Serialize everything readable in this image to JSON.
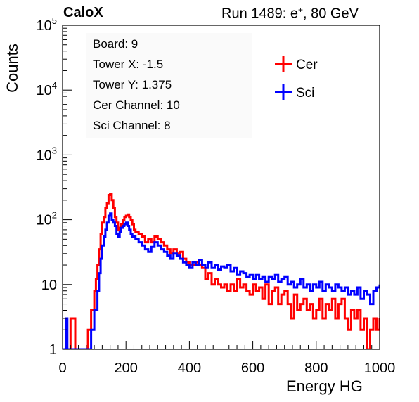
{
  "header": {
    "experiment": "CaloX",
    "run_text": "Run 1489: e",
    "run_sup": "+",
    "run_energy": ", 80 GeV"
  },
  "info_box": {
    "lines": [
      "Board: 9",
      "Tower X: -1.5",
      "Tower Y: 1.375",
      "Cer Channel: 10",
      "Sci Channel: 8"
    ]
  },
  "colors": {
    "cer": "#ff0000",
    "sci": "#0000ff",
    "axis": "#000000"
  },
  "chart_data": {
    "type": "line",
    "style": "step-histogram",
    "xlabel": "Energy HG",
    "ylabel": "Counts",
    "xlim": [
      0,
      1000
    ],
    "ylim": [
      1,
      100000
    ],
    "yscale": "log",
    "x_ticks": [
      0,
      200,
      400,
      600,
      800,
      1000
    ],
    "y_ticks": [
      {
        "value": 1,
        "label": "1"
      },
      {
        "value": 10,
        "label": "10"
      },
      {
        "value": 100,
        "label": "10",
        "sup": "2"
      },
      {
        "value": 1000,
        "label": "10",
        "sup": "3"
      },
      {
        "value": 10000,
        "label": "10",
        "sup": "4"
      },
      {
        "value": 100000,
        "label": "10",
        "sup": "5"
      }
    ],
    "legend": {
      "placement": "top-right"
    },
    "series": [
      {
        "name": "Cer",
        "points": [
          [
            0,
            1
          ],
          [
            20,
            1
          ],
          [
            25,
            3
          ],
          [
            40,
            1
          ],
          [
            50,
            1
          ],
          [
            60,
            1
          ],
          [
            70,
            1
          ],
          [
            80,
            2
          ],
          [
            90,
            4
          ],
          [
            100,
            8
          ],
          [
            105,
            12
          ],
          [
            110,
            20
          ],
          [
            115,
            35
          ],
          [
            120,
            60
          ],
          [
            125,
            90
          ],
          [
            130,
            110
          ],
          [
            135,
            150
          ],
          [
            140,
            180
          ],
          [
            145,
            240
          ],
          [
            150,
            250
          ],
          [
            155,
            200
          ],
          [
            160,
            150
          ],
          [
            165,
            110
          ],
          [
            170,
            90
          ],
          [
            175,
            70
          ],
          [
            180,
            75
          ],
          [
            185,
            85
          ],
          [
            190,
            100
          ],
          [
            195,
            110
          ],
          [
            200,
            115
          ],
          [
            205,
            120
          ],
          [
            210,
            110
          ],
          [
            215,
            100
          ],
          [
            220,
            85
          ],
          [
            225,
            70
          ],
          [
            230,
            65
          ],
          [
            240,
            60
          ],
          [
            250,
            55
          ],
          [
            260,
            45
          ],
          [
            270,
            50
          ],
          [
            280,
            45
          ],
          [
            290,
            55
          ],
          [
            300,
            50
          ],
          [
            310,
            45
          ],
          [
            320,
            40
          ],
          [
            330,
            35
          ],
          [
            340,
            30
          ],
          [
            350,
            35
          ],
          [
            360,
            30
          ],
          [
            370,
            32
          ],
          [
            380,
            25
          ],
          [
            390,
            22
          ],
          [
            400,
            20
          ],
          [
            410,
            20
          ],
          [
            420,
            22
          ],
          [
            430,
            20
          ],
          [
            440,
            18
          ],
          [
            450,
            12
          ],
          [
            460,
            15
          ],
          [
            470,
            10
          ],
          [
            480,
            12
          ],
          [
            490,
            10
          ],
          [
            500,
            9
          ],
          [
            510,
            10
          ],
          [
            520,
            8
          ],
          [
            530,
            10
          ],
          [
            540,
            8
          ],
          [
            550,
            12
          ],
          [
            560,
            9
          ],
          [
            570,
            10
          ],
          [
            580,
            8
          ],
          [
            590,
            7
          ],
          [
            600,
            10
          ],
          [
            610,
            8
          ],
          [
            620,
            9
          ],
          [
            630,
            6
          ],
          [
            640,
            10
          ],
          [
            650,
            5
          ],
          [
            660,
            8
          ],
          [
            670,
            9
          ],
          [
            680,
            5
          ],
          [
            690,
            7
          ],
          [
            700,
            8
          ],
          [
            710,
            5
          ],
          [
            720,
            3
          ],
          [
            730,
            7
          ],
          [
            740,
            4
          ],
          [
            750,
            5
          ],
          [
            760,
            6
          ],
          [
            770,
            4
          ],
          [
            780,
            5
          ],
          [
            790,
            3
          ],
          [
            800,
            4
          ],
          [
            810,
            6
          ],
          [
            820,
            3
          ],
          [
            830,
            5
          ],
          [
            840,
            4
          ],
          [
            850,
            6
          ],
          [
            860,
            3
          ],
          [
            870,
            5
          ],
          [
            880,
            6
          ],
          [
            890,
            3
          ],
          [
            900,
            2
          ],
          [
            910,
            4
          ],
          [
            920,
            3
          ],
          [
            930,
            4
          ],
          [
            940,
            2
          ],
          [
            950,
            3
          ],
          [
            960,
            1
          ],
          [
            970,
            2
          ],
          [
            980,
            3
          ],
          [
            990,
            2
          ],
          [
            1000,
            3
          ]
        ]
      },
      {
        "name": "Sci",
        "points": [
          [
            0,
            1
          ],
          [
            10,
            3
          ],
          [
            15,
            1
          ],
          [
            60,
            1
          ],
          [
            80,
            1
          ],
          [
            90,
            2
          ],
          [
            100,
            4
          ],
          [
            110,
            8
          ],
          [
            115,
            15
          ],
          [
            120,
            25
          ],
          [
            125,
            40
          ],
          [
            130,
            55
          ],
          [
            135,
            70
          ],
          [
            140,
            90
          ],
          [
            145,
            115
          ],
          [
            150,
            125
          ],
          [
            155,
            100
          ],
          [
            160,
            90
          ],
          [
            165,
            80
          ],
          [
            170,
            60
          ],
          [
            175,
            55
          ],
          [
            180,
            65
          ],
          [
            185,
            75
          ],
          [
            190,
            80
          ],
          [
            195,
            85
          ],
          [
            200,
            90
          ],
          [
            205,
            80
          ],
          [
            210,
            70
          ],
          [
            215,
            60
          ],
          [
            220,
            55
          ],
          [
            230,
            50
          ],
          [
            240,
            45
          ],
          [
            250,
            40
          ],
          [
            260,
            35
          ],
          [
            270,
            32
          ],
          [
            280,
            38
          ],
          [
            290,
            45
          ],
          [
            300,
            40
          ],
          [
            310,
            35
          ],
          [
            320,
            32
          ],
          [
            330,
            28
          ],
          [
            340,
            25
          ],
          [
            350,
            30
          ],
          [
            360,
            28
          ],
          [
            370,
            25
          ],
          [
            380,
            22
          ],
          [
            390,
            20
          ],
          [
            400,
            18
          ],
          [
            410,
            22
          ],
          [
            420,
            20
          ],
          [
            430,
            24
          ],
          [
            440,
            20
          ],
          [
            450,
            18
          ],
          [
            460,
            22
          ],
          [
            470,
            18
          ],
          [
            480,
            20
          ],
          [
            490,
            17
          ],
          [
            500,
            19
          ],
          [
            510,
            18
          ],
          [
            520,
            20
          ],
          [
            530,
            16
          ],
          [
            540,
            18
          ],
          [
            550,
            14
          ],
          [
            560,
            16
          ],
          [
            570,
            15
          ],
          [
            580,
            13
          ],
          [
            590,
            14
          ],
          [
            600,
            12
          ],
          [
            610,
            14
          ],
          [
            620,
            12
          ],
          [
            630,
            13
          ],
          [
            640,
            11
          ],
          [
            650,
            13
          ],
          [
            660,
            12
          ],
          [
            670,
            14
          ],
          [
            680,
            11
          ],
          [
            690,
            12
          ],
          [
            700,
            13
          ],
          [
            710,
            10
          ],
          [
            720,
            11
          ],
          [
            730,
            9
          ],
          [
            740,
            10
          ],
          [
            750,
            12
          ],
          [
            760,
            9
          ],
          [
            770,
            10
          ],
          [
            780,
            8
          ],
          [
            790,
            10
          ],
          [
            800,
            9
          ],
          [
            810,
            11
          ],
          [
            820,
            8
          ],
          [
            830,
            10
          ],
          [
            840,
            9
          ],
          [
            850,
            8
          ],
          [
            860,
            10
          ],
          [
            870,
            9
          ],
          [
            880,
            8
          ],
          [
            890,
            9
          ],
          [
            900,
            7
          ],
          [
            910,
            8
          ],
          [
            920,
            7
          ],
          [
            930,
            9
          ],
          [
            940,
            6
          ],
          [
            950,
            8
          ],
          [
            960,
            7
          ],
          [
            970,
            5
          ],
          [
            980,
            8
          ],
          [
            990,
            9
          ],
          [
            1000,
            10
          ]
        ]
      }
    ]
  }
}
